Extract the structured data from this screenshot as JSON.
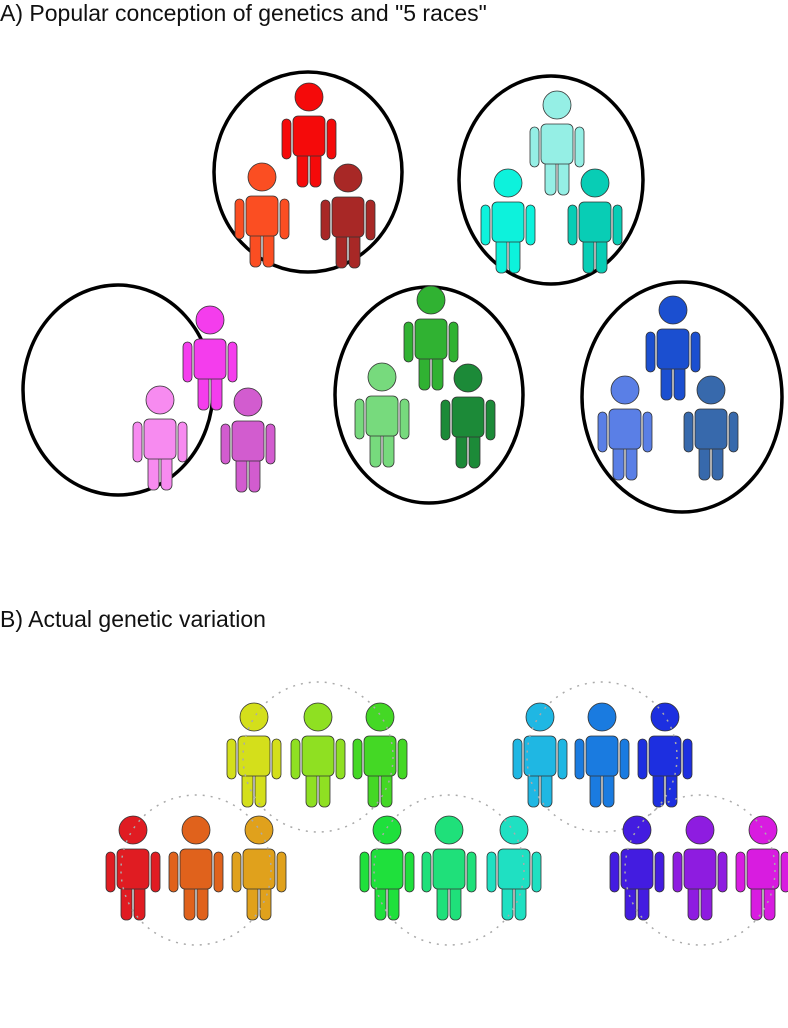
{
  "panel_a": {
    "title": "A) Popular conception of genetics and \"5 races\"",
    "groups": [
      {
        "people": [
          "#f50a0a",
          "#fb4e22",
          "#a82826"
        ]
      },
      {
        "people": [
          "#95efe5",
          "#0df2dc",
          "#08cdb5"
        ]
      },
      {
        "people": [
          "#f43ded",
          "#f78bf0",
          "#d25ccf"
        ]
      },
      {
        "people": [
          "#30b232",
          "#77da7d",
          "#1c8a38"
        ]
      },
      {
        "people": [
          "#1b4fd0",
          "#5a7fe6",
          "#3769ac"
        ]
      }
    ]
  },
  "panel_b": {
    "title": "B) Actual genetic variation",
    "groups": [
      {
        "people": [
          "#d4df1b",
          "#8fe022",
          "#44d825"
        ]
      },
      {
        "people": [
          "#1fb7e3",
          "#1a7be0",
          "#1d2fe0"
        ]
      },
      {
        "people": [
          "#e01c22",
          "#e0621c",
          "#e0a11c"
        ]
      },
      {
        "people": [
          "#1fe03c",
          "#1fe07a",
          "#1fe0c2"
        ]
      },
      {
        "people": [
          "#431ce0",
          "#8e1ce0",
          "#d81ce0"
        ]
      }
    ]
  }
}
